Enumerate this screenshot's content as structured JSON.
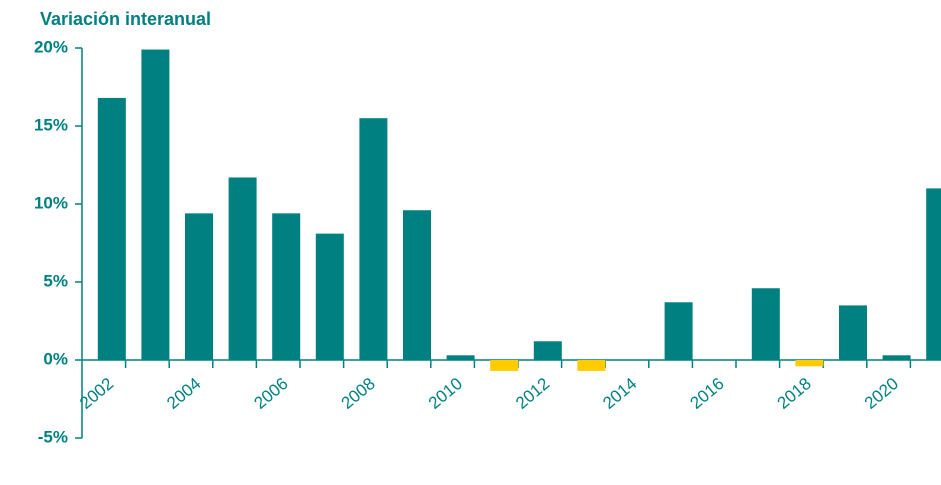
{
  "chart_data": {
    "type": "bar",
    "title": "Variación interanual",
    "categories": [
      "2002",
      null,
      "2004",
      null,
      "2006",
      null,
      "2008",
      null,
      "2010",
      null,
      "2012",
      null,
      "2014",
      null,
      "2016",
      null,
      "2018",
      null,
      "2020",
      null
    ],
    "values": [
      16.8,
      19.9,
      9.4,
      11.7,
      9.4,
      8.1,
      15.5,
      9.6,
      0.3,
      -0.7,
      1.2,
      -0.7,
      0,
      3.7,
      0,
      4.6,
      -0.4,
      3.5,
      0.3,
      11.0
    ],
    "color": "#008080",
    "negative_color": "#ffcc00",
    "ylim": [
      -5,
      20
    ],
    "yticks": [
      {
        "value": -5,
        "label": "-5%"
      },
      {
        "value": 0,
        "label": "0%"
      },
      {
        "value": 5,
        "label": "5%"
      },
      {
        "value": 10,
        "label": "10%"
      },
      {
        "value": 15,
        "label": "15%"
      },
      {
        "value": 20,
        "label": "20%"
      }
    ],
    "grid": false
  }
}
